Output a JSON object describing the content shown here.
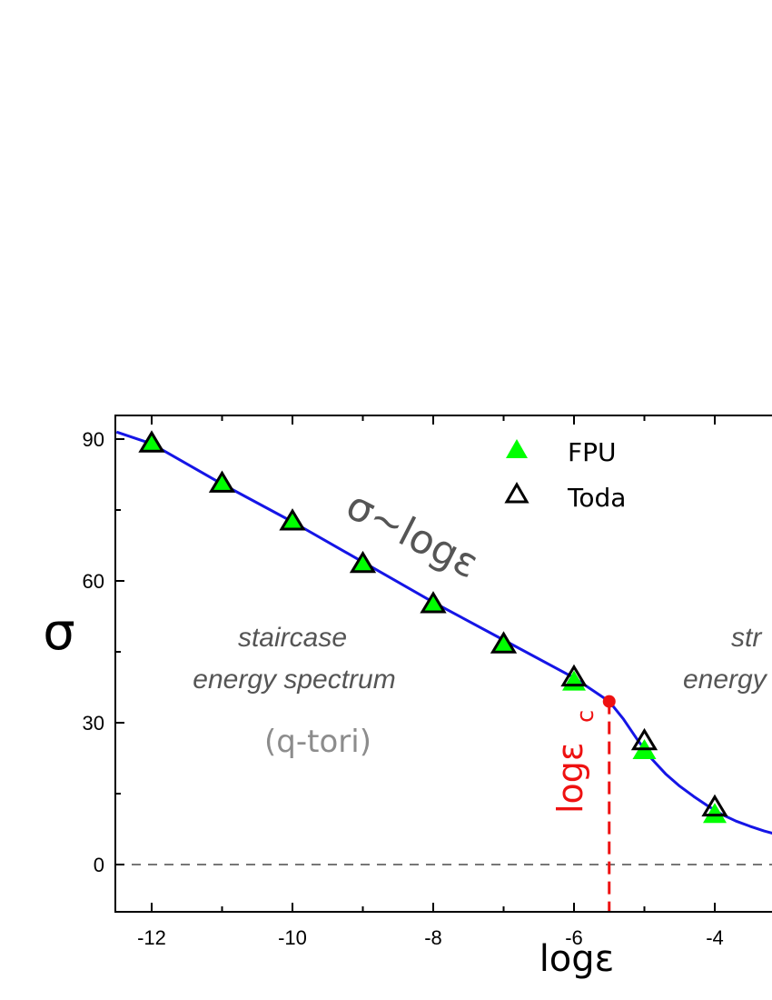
{
  "chart_data": {
    "type": "scatter",
    "xlabel": "logε",
    "ylabel": "σ",
    "xlim": [
      -12.5,
      -2.8
    ],
    "ylim": [
      -10,
      95
    ],
    "x_ticks": [
      -12,
      -10,
      -8,
      -6,
      -4
    ],
    "y_ticks": [
      0,
      30,
      60,
      90
    ],
    "grid": false,
    "legend_placement": "top-center",
    "series": [
      {
        "name": "FPU",
        "marker": "filled-triangle",
        "color": "#00ff00",
        "x": [
          -12,
          -11,
          -10,
          -9,
          -8,
          -7,
          -6,
          -5,
          -4
        ],
        "y": [
          89,
          80.5,
          72.5,
          63.5,
          55,
          46.5,
          38.5,
          24,
          10.5
        ]
      },
      {
        "name": "Toda",
        "marker": "open-triangle",
        "color": "#000000",
        "x": [
          -12,
          -11,
          -10,
          -9,
          -8,
          -7,
          -6,
          -5,
          -4
        ],
        "y": [
          89,
          80.5,
          72.5,
          63.5,
          55,
          46.5,
          39.5,
          26,
          12
        ]
      }
    ],
    "fit_curve": {
      "color": "#1515e6",
      "x": [
        -12.5,
        -12,
        -11,
        -10,
        -9,
        -8,
        -7,
        -6,
        -5.5,
        -5.3,
        -5.1,
        -4.9,
        -4.7,
        -4.5,
        -4.3,
        -4.1,
        -3.9,
        -3.7,
        -3.5,
        -3.3,
        -3.1,
        -2.9
      ],
      "y": [
        91.5,
        89,
        80.5,
        72.5,
        64,
        55.5,
        47.5,
        39.5,
        34.5,
        30.8,
        26.4,
        22.4,
        19.2,
        16.6,
        14.4,
        12.4,
        10.6,
        9.2,
        8.1,
        7.1,
        6.3,
        5.6
      ]
    },
    "zero_line": {
      "y": 0,
      "color": "#777777"
    },
    "critical_point": {
      "x": -5.5,
      "y": 34.5,
      "color": "#ee1111"
    },
    "annotations": {
      "left_region_line1": "staircase",
      "left_region_line2": "energy spectrum",
      "left_region_paren": "(q-tori)",
      "right_region_line1": "str",
      "right_region_line2": "energy",
      "law": "σ~logε",
      "critical_label": "logε",
      "critical_label_sub": "c"
    }
  }
}
